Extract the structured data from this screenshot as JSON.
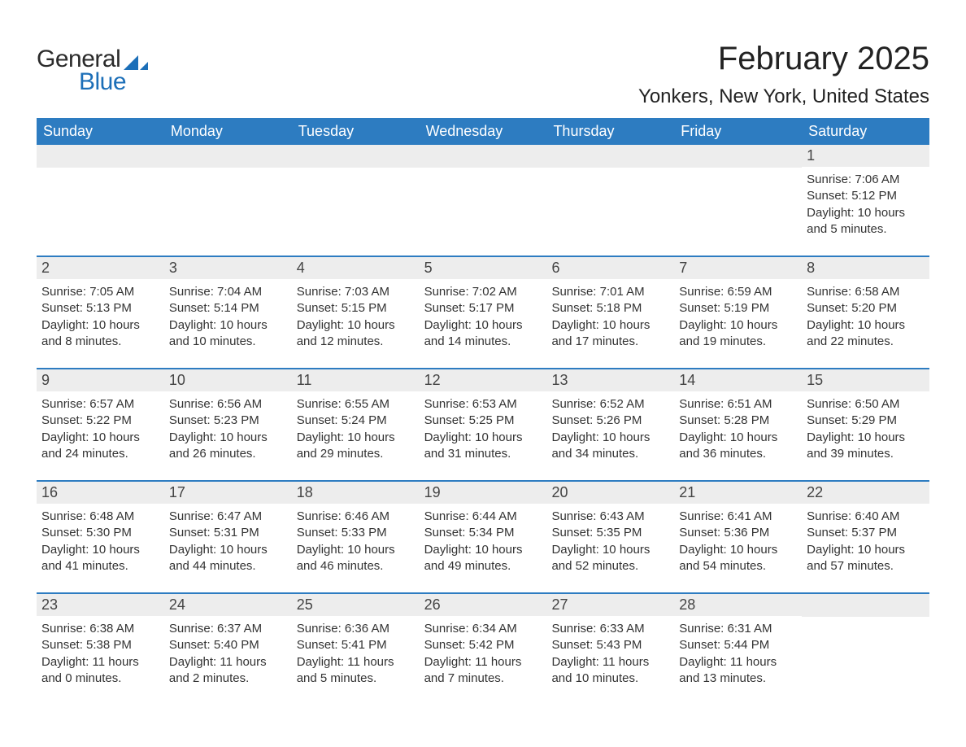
{
  "logo": {
    "general": "General",
    "blue": "Blue",
    "icon_color": "#1c6fb8"
  },
  "title": "February 2025",
  "location": "Yonkers, New York, United States",
  "colors": {
    "header_bg": "#2d7cc1",
    "header_text": "#ffffff",
    "row_border": "#2d7cc1",
    "daynum_bg": "#ededed",
    "body_text": "#333333",
    "background": "#ffffff"
  },
  "typography": {
    "title_fontsize": 40,
    "location_fontsize": 24,
    "weekday_fontsize": 18,
    "daynum_fontsize": 18,
    "body_fontsize": 15
  },
  "weekdays": [
    "Sunday",
    "Monday",
    "Tuesday",
    "Wednesday",
    "Thursday",
    "Friday",
    "Saturday"
  ],
  "weeks": [
    [
      {
        "day": "",
        "sunrise": "",
        "sunset": "",
        "daylight": ""
      },
      {
        "day": "",
        "sunrise": "",
        "sunset": "",
        "daylight": ""
      },
      {
        "day": "",
        "sunrise": "",
        "sunset": "",
        "daylight": ""
      },
      {
        "day": "",
        "sunrise": "",
        "sunset": "",
        "daylight": ""
      },
      {
        "day": "",
        "sunrise": "",
        "sunset": "",
        "daylight": ""
      },
      {
        "day": "",
        "sunrise": "",
        "sunset": "",
        "daylight": ""
      },
      {
        "day": "1",
        "sunrise": "Sunrise: 7:06 AM",
        "sunset": "Sunset: 5:12 PM",
        "daylight": "Daylight: 10 hours and 5 minutes."
      }
    ],
    [
      {
        "day": "2",
        "sunrise": "Sunrise: 7:05 AM",
        "sunset": "Sunset: 5:13 PM",
        "daylight": "Daylight: 10 hours and 8 minutes."
      },
      {
        "day": "3",
        "sunrise": "Sunrise: 7:04 AM",
        "sunset": "Sunset: 5:14 PM",
        "daylight": "Daylight: 10 hours and 10 minutes."
      },
      {
        "day": "4",
        "sunrise": "Sunrise: 7:03 AM",
        "sunset": "Sunset: 5:15 PM",
        "daylight": "Daylight: 10 hours and 12 minutes."
      },
      {
        "day": "5",
        "sunrise": "Sunrise: 7:02 AM",
        "sunset": "Sunset: 5:17 PM",
        "daylight": "Daylight: 10 hours and 14 minutes."
      },
      {
        "day": "6",
        "sunrise": "Sunrise: 7:01 AM",
        "sunset": "Sunset: 5:18 PM",
        "daylight": "Daylight: 10 hours and 17 minutes."
      },
      {
        "day": "7",
        "sunrise": "Sunrise: 6:59 AM",
        "sunset": "Sunset: 5:19 PM",
        "daylight": "Daylight: 10 hours and 19 minutes."
      },
      {
        "day": "8",
        "sunrise": "Sunrise: 6:58 AM",
        "sunset": "Sunset: 5:20 PM",
        "daylight": "Daylight: 10 hours and 22 minutes."
      }
    ],
    [
      {
        "day": "9",
        "sunrise": "Sunrise: 6:57 AM",
        "sunset": "Sunset: 5:22 PM",
        "daylight": "Daylight: 10 hours and 24 minutes."
      },
      {
        "day": "10",
        "sunrise": "Sunrise: 6:56 AM",
        "sunset": "Sunset: 5:23 PM",
        "daylight": "Daylight: 10 hours and 26 minutes."
      },
      {
        "day": "11",
        "sunrise": "Sunrise: 6:55 AM",
        "sunset": "Sunset: 5:24 PM",
        "daylight": "Daylight: 10 hours and 29 minutes."
      },
      {
        "day": "12",
        "sunrise": "Sunrise: 6:53 AM",
        "sunset": "Sunset: 5:25 PM",
        "daylight": "Daylight: 10 hours and 31 minutes."
      },
      {
        "day": "13",
        "sunrise": "Sunrise: 6:52 AM",
        "sunset": "Sunset: 5:26 PM",
        "daylight": "Daylight: 10 hours and 34 minutes."
      },
      {
        "day": "14",
        "sunrise": "Sunrise: 6:51 AM",
        "sunset": "Sunset: 5:28 PM",
        "daylight": "Daylight: 10 hours and 36 minutes."
      },
      {
        "day": "15",
        "sunrise": "Sunrise: 6:50 AM",
        "sunset": "Sunset: 5:29 PM",
        "daylight": "Daylight: 10 hours and 39 minutes."
      }
    ],
    [
      {
        "day": "16",
        "sunrise": "Sunrise: 6:48 AM",
        "sunset": "Sunset: 5:30 PM",
        "daylight": "Daylight: 10 hours and 41 minutes."
      },
      {
        "day": "17",
        "sunrise": "Sunrise: 6:47 AM",
        "sunset": "Sunset: 5:31 PM",
        "daylight": "Daylight: 10 hours and 44 minutes."
      },
      {
        "day": "18",
        "sunrise": "Sunrise: 6:46 AM",
        "sunset": "Sunset: 5:33 PM",
        "daylight": "Daylight: 10 hours and 46 minutes."
      },
      {
        "day": "19",
        "sunrise": "Sunrise: 6:44 AM",
        "sunset": "Sunset: 5:34 PM",
        "daylight": "Daylight: 10 hours and 49 minutes."
      },
      {
        "day": "20",
        "sunrise": "Sunrise: 6:43 AM",
        "sunset": "Sunset: 5:35 PM",
        "daylight": "Daylight: 10 hours and 52 minutes."
      },
      {
        "day": "21",
        "sunrise": "Sunrise: 6:41 AM",
        "sunset": "Sunset: 5:36 PM",
        "daylight": "Daylight: 10 hours and 54 minutes."
      },
      {
        "day": "22",
        "sunrise": "Sunrise: 6:40 AM",
        "sunset": "Sunset: 5:37 PM",
        "daylight": "Daylight: 10 hours and 57 minutes."
      }
    ],
    [
      {
        "day": "23",
        "sunrise": "Sunrise: 6:38 AM",
        "sunset": "Sunset: 5:38 PM",
        "daylight": "Daylight: 11 hours and 0 minutes."
      },
      {
        "day": "24",
        "sunrise": "Sunrise: 6:37 AM",
        "sunset": "Sunset: 5:40 PM",
        "daylight": "Daylight: 11 hours and 2 minutes."
      },
      {
        "day": "25",
        "sunrise": "Sunrise: 6:36 AM",
        "sunset": "Sunset: 5:41 PM",
        "daylight": "Daylight: 11 hours and 5 minutes."
      },
      {
        "day": "26",
        "sunrise": "Sunrise: 6:34 AM",
        "sunset": "Sunset: 5:42 PM",
        "daylight": "Daylight: 11 hours and 7 minutes."
      },
      {
        "day": "27",
        "sunrise": "Sunrise: 6:33 AM",
        "sunset": "Sunset: 5:43 PM",
        "daylight": "Daylight: 11 hours and 10 minutes."
      },
      {
        "day": "28",
        "sunrise": "Sunrise: 6:31 AM",
        "sunset": "Sunset: 5:44 PM",
        "daylight": "Daylight: 11 hours and 13 minutes."
      },
      {
        "day": "",
        "sunrise": "",
        "sunset": "",
        "daylight": ""
      }
    ]
  ]
}
